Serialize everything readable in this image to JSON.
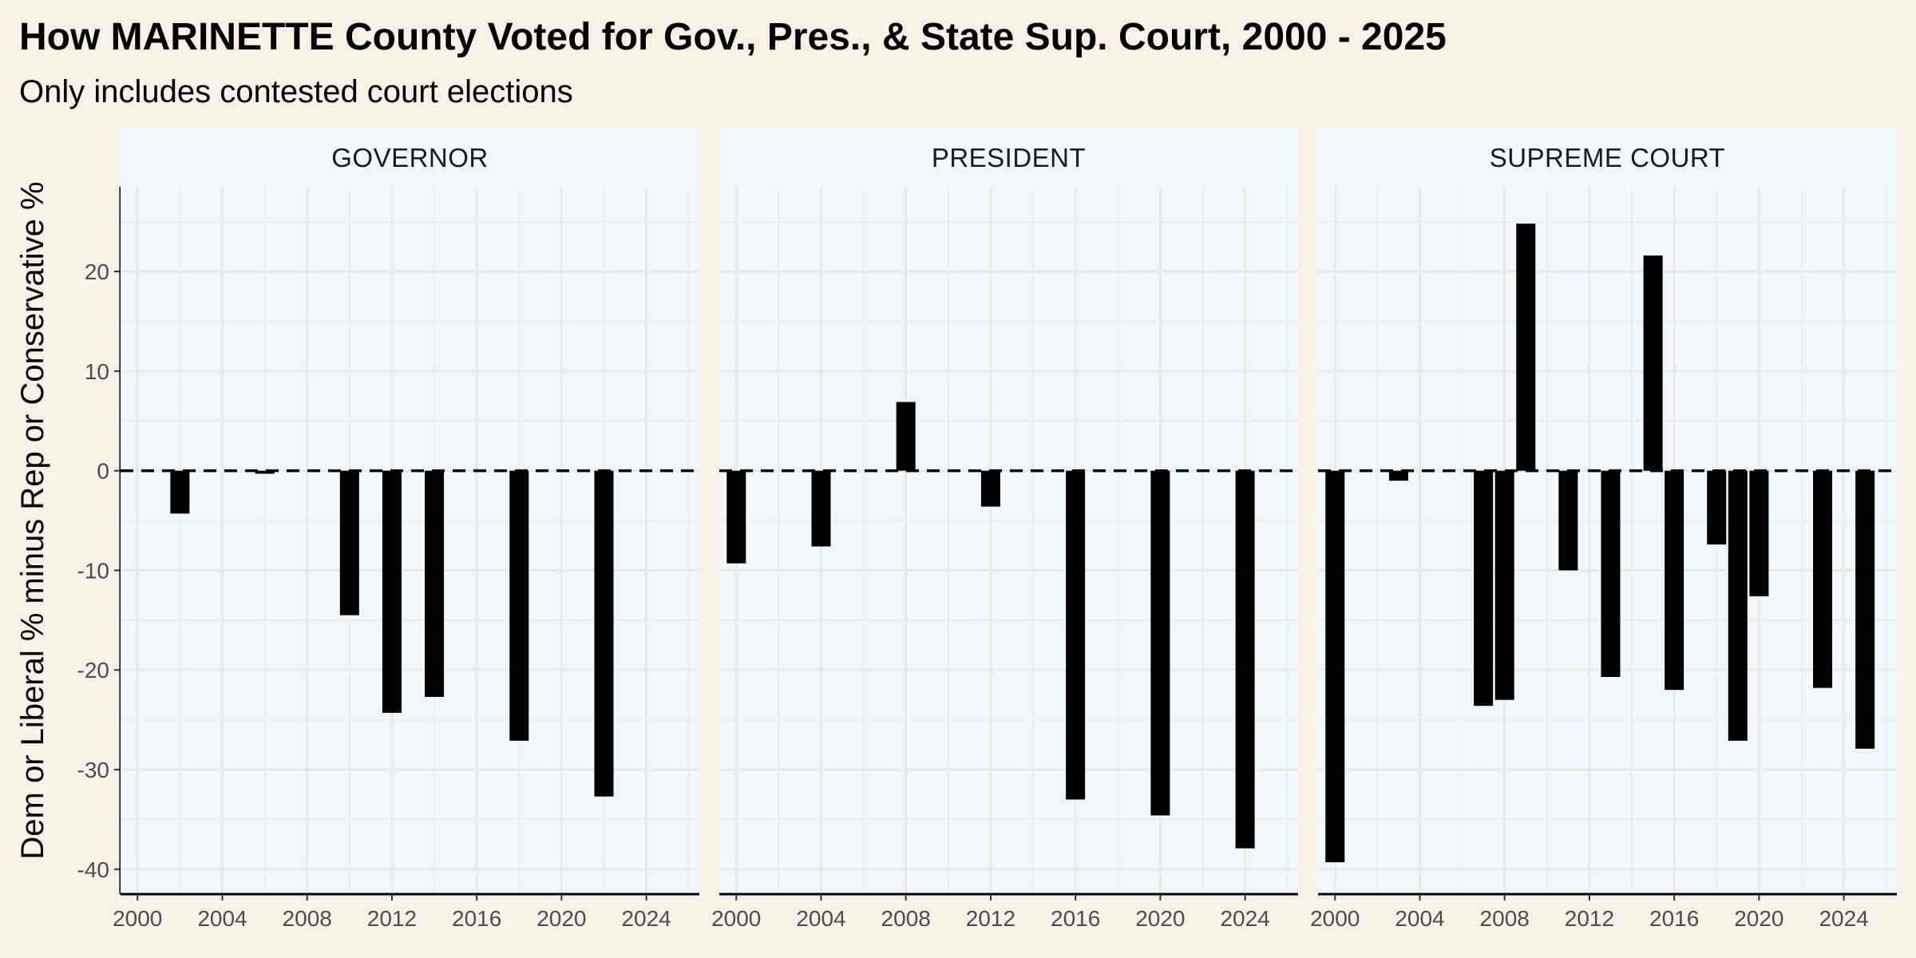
{
  "chart_data": {
    "type": "bar",
    "title": "How MARINETTE County Voted for Gov., Pres., & State Sup. Court, 2000 - 2025",
    "subtitle": "Only includes contested court elections",
    "ylabel": "Dem or Liberal % minus Rep or Conservative %",
    "xlabel": "",
    "xlim": [
      1999.2,
      2026.5
    ],
    "ylim": [
      -42.5,
      28.5
    ],
    "x_ticks": [
      2000,
      2004,
      2008,
      2012,
      2016,
      2020,
      2024
    ],
    "y_ticks": [
      -40,
      -30,
      -20,
      -10,
      0,
      10,
      20
    ],
    "grid": true,
    "legend": "none",
    "reference_line": 0,
    "colors": {
      "background": "#faf0e6",
      "panel": "#f0f8ff",
      "bar": "#000000",
      "grid": "#ece9e3"
    },
    "facets": [
      {
        "label": "GOVERNOR",
        "points": [
          {
            "x": 2002,
            "y": -4.3
          },
          {
            "x": 2006,
            "y": -0.3
          },
          {
            "x": 2010,
            "y": -14.5
          },
          {
            "x": 2012,
            "y": -24.3
          },
          {
            "x": 2014,
            "y": -22.7
          },
          {
            "x": 2018,
            "y": -27.1
          },
          {
            "x": 2022,
            "y": -32.7
          }
        ]
      },
      {
        "label": "PRESIDENT",
        "points": [
          {
            "x": 2000,
            "y": -9.3
          },
          {
            "x": 2004,
            "y": -7.6
          },
          {
            "x": 2008,
            "y": 6.9
          },
          {
            "x": 2012,
            "y": -3.6
          },
          {
            "x": 2016,
            "y": -33.0
          },
          {
            "x": 2020,
            "y": -34.6
          },
          {
            "x": 2024,
            "y": -37.9
          }
        ]
      },
      {
        "label": "SUPREME COURT",
        "points": [
          {
            "x": 2000,
            "y": -39.3
          },
          {
            "x": 2003,
            "y": -1.0
          },
          {
            "x": 2007,
            "y": -23.6
          },
          {
            "x": 2008,
            "y": -23.0
          },
          {
            "x": 2009,
            "y": 24.8
          },
          {
            "x": 2011,
            "y": -10.0
          },
          {
            "x": 2013,
            "y": -20.7
          },
          {
            "x": 2015,
            "y": 21.6
          },
          {
            "x": 2016,
            "y": -22.0
          },
          {
            "x": 2018,
            "y": -7.4
          },
          {
            "x": 2019,
            "y": -27.1
          },
          {
            "x": 2020,
            "y": -12.6
          },
          {
            "x": 2023,
            "y": -21.8
          },
          {
            "x": 2025,
            "y": -27.9
          }
        ]
      }
    ]
  }
}
